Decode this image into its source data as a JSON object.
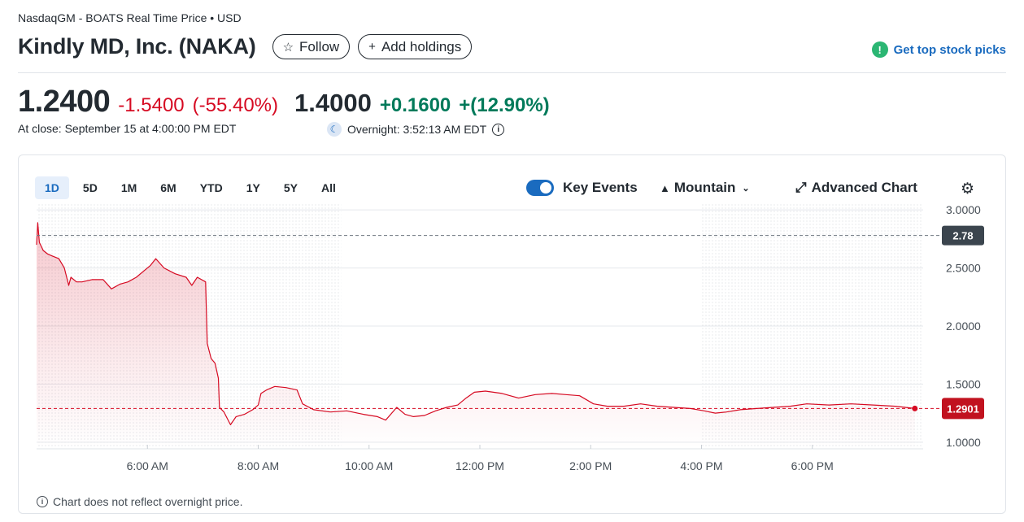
{
  "header": {
    "exchange": "NasdaqGM - BOATS Real Time Price • USD",
    "company": "Kindly MD, Inc. (NAKA)",
    "follow_label": "Follow",
    "add_holdings_label": "Add holdings",
    "top_picks_label": "Get top stock picks"
  },
  "quote": {
    "price": "1.2400",
    "change": "-1.5400",
    "change_pct": "(-55.40%)",
    "close_time": "At close: September 15 at 4:00:00 PM EDT",
    "overnight_price": "1.4000",
    "overnight_change": "+0.1600",
    "overnight_change_pct": "+(12.90%)",
    "overnight_time": "Overnight: 3:52:13 AM EDT"
  },
  "chart_controls": {
    "ranges": [
      "1D",
      "5D",
      "1M",
      "6M",
      "YTD",
      "1Y",
      "5Y",
      "All"
    ],
    "active_range": "1D",
    "key_events_label": "Key Events",
    "chart_type_label": "Mountain",
    "advanced_label": "Advanced Chart"
  },
  "footnote": "Chart does not reflect overnight price.",
  "colors": {
    "down": "#d60a22",
    "up": "#007a5a",
    "accent": "#1a6bbf"
  },
  "chart_data": {
    "type": "area",
    "x_unit": "hour of day (EDT)",
    "x_range": [
      4,
      20
    ],
    "xticks": [
      {
        "x": 6,
        "label": "6:00 AM"
      },
      {
        "x": 8,
        "label": "8:00 AM"
      },
      {
        "x": 10,
        "label": "10:00 AM"
      },
      {
        "x": 12,
        "label": "12:00 PM"
      },
      {
        "x": 14,
        "label": "2:00 PM"
      },
      {
        "x": 16,
        "label": "4:00 PM"
      },
      {
        "x": 18,
        "label": "6:00 PM"
      }
    ],
    "ylim": [
      0.95,
      3.05
    ],
    "yticks": [
      {
        "y": 3.0,
        "label": "3.0000"
      },
      {
        "y": 2.5,
        "label": "2.5000"
      },
      {
        "y": 2.0,
        "label": "2.0000"
      },
      {
        "y": 1.5,
        "label": "1.5000"
      },
      {
        "y": 1.0,
        "label": "1.0000"
      }
    ],
    "previous_close": 2.78,
    "previous_close_label": "2.78",
    "last_price": 1.2901,
    "last_price_label": "1.2901",
    "shaded_sessions": [
      [
        4,
        9.5
      ],
      [
        16,
        20
      ]
    ],
    "series": [
      {
        "color": "#d60a22",
        "points": [
          [
            4.0,
            2.7
          ],
          [
            4.02,
            2.89
          ],
          [
            4.05,
            2.72
          ],
          [
            4.12,
            2.65
          ],
          [
            4.2,
            2.62
          ],
          [
            4.3,
            2.6
          ],
          [
            4.4,
            2.58
          ],
          [
            4.5,
            2.5
          ],
          [
            4.58,
            2.35
          ],
          [
            4.62,
            2.42
          ],
          [
            4.72,
            2.38
          ],
          [
            4.82,
            2.38
          ],
          [
            5.0,
            2.4
          ],
          [
            5.2,
            2.4
          ],
          [
            5.35,
            2.32
          ],
          [
            5.5,
            2.36
          ],
          [
            5.65,
            2.38
          ],
          [
            5.8,
            2.42
          ],
          [
            5.95,
            2.48
          ],
          [
            6.05,
            2.52
          ],
          [
            6.15,
            2.58
          ],
          [
            6.3,
            2.5
          ],
          [
            6.5,
            2.45
          ],
          [
            6.7,
            2.42
          ],
          [
            6.8,
            2.35
          ],
          [
            6.9,
            2.42
          ],
          [
            7.05,
            2.38
          ],
          [
            7.08,
            1.85
          ],
          [
            7.15,
            1.72
          ],
          [
            7.22,
            1.68
          ],
          [
            7.28,
            1.55
          ],
          [
            7.3,
            1.3
          ],
          [
            7.38,
            1.26
          ],
          [
            7.5,
            1.15
          ],
          [
            7.6,
            1.22
          ],
          [
            7.75,
            1.24
          ],
          [
            7.9,
            1.28
          ],
          [
            8.0,
            1.32
          ],
          [
            8.05,
            1.42
          ],
          [
            8.15,
            1.45
          ],
          [
            8.3,
            1.48
          ],
          [
            8.5,
            1.47
          ],
          [
            8.7,
            1.45
          ],
          [
            8.8,
            1.33
          ],
          [
            9.0,
            1.28
          ],
          [
            9.3,
            1.26
          ],
          [
            9.6,
            1.27
          ],
          [
            9.9,
            1.24
          ],
          [
            10.15,
            1.22
          ],
          [
            10.3,
            1.19
          ],
          [
            10.5,
            1.3
          ],
          [
            10.65,
            1.24
          ],
          [
            10.8,
            1.22
          ],
          [
            11.0,
            1.23
          ],
          [
            11.2,
            1.27
          ],
          [
            11.4,
            1.3
          ],
          [
            11.6,
            1.32
          ],
          [
            11.75,
            1.38
          ],
          [
            11.9,
            1.43
          ],
          [
            12.1,
            1.44
          ],
          [
            12.4,
            1.42
          ],
          [
            12.7,
            1.38
          ],
          [
            13.0,
            1.41
          ],
          [
            13.3,
            1.42
          ],
          [
            13.55,
            1.41
          ],
          [
            13.8,
            1.4
          ],
          [
            14.05,
            1.33
          ],
          [
            14.3,
            1.31
          ],
          [
            14.6,
            1.31
          ],
          [
            14.9,
            1.33
          ],
          [
            15.2,
            1.31
          ],
          [
            15.5,
            1.3
          ],
          [
            15.8,
            1.29
          ],
          [
            16.05,
            1.27
          ],
          [
            16.25,
            1.25
          ],
          [
            16.45,
            1.26
          ],
          [
            16.7,
            1.28
          ],
          [
            17.0,
            1.29
          ],
          [
            17.3,
            1.3
          ],
          [
            17.6,
            1.31
          ],
          [
            17.9,
            1.33
          ],
          [
            18.3,
            1.32
          ],
          [
            18.7,
            1.33
          ],
          [
            19.1,
            1.32
          ],
          [
            19.5,
            1.31
          ],
          [
            19.85,
            1.2901
          ]
        ]
      }
    ]
  }
}
